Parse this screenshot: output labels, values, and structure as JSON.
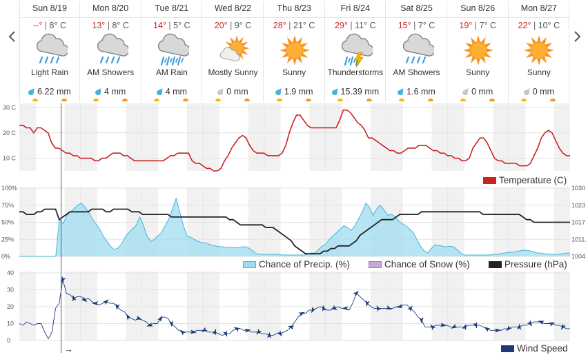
{
  "nav": {
    "prev_icon": "chevron-left-icon",
    "next_icon": "chevron-right-icon"
  },
  "days": [
    {
      "name": "Sun 8/19",
      "hi": "--°",
      "lo": "8° C",
      "icon": "rain-cloud-icon",
      "condition": "Light Rain",
      "precip": "6.22 mm",
      "drop": "blue"
    },
    {
      "name": "Mon 8/20",
      "hi": "13°",
      "lo": "8° C",
      "icon": "rain-cloud-icon",
      "condition": "AM Showers",
      "precip": "4 mm",
      "drop": "blue"
    },
    {
      "name": "Tue 8/21",
      "hi": "14°",
      "lo": "5° C",
      "icon": "heavy-rain-cloud-icon",
      "condition": "AM Rain",
      "precip": "4 mm",
      "drop": "blue"
    },
    {
      "name": "Wed 8/22",
      "hi": "20°",
      "lo": "9° C",
      "icon": "sun-cloud-icon",
      "condition": "Mostly Sunny",
      "precip": "0 mm",
      "drop": "gray"
    },
    {
      "name": "Thu 8/23",
      "hi": "28°",
      "lo": "21° C",
      "icon": "sun-icon",
      "condition": "Sunny",
      "precip": "1.9 mm",
      "drop": "blue"
    },
    {
      "name": "Fri 8/24",
      "hi": "29°",
      "lo": "11° C",
      "icon": "thunderstorm-icon",
      "condition": "Thunderstorms",
      "precip": "15.39 mm",
      "drop": "blue"
    },
    {
      "name": "Sat 8/25",
      "hi": "15°",
      "lo": "7° C",
      "icon": "rain-cloud-icon",
      "condition": "AM Showers",
      "precip": "1.6 mm",
      "drop": "blue"
    },
    {
      "name": "Sun 8/26",
      "hi": "19°",
      "lo": "7° C",
      "icon": "sun-icon",
      "condition": "Sunny",
      "precip": "0 mm",
      "drop": "gray"
    },
    {
      "name": "Mon 8/27",
      "hi": "22°",
      "lo": "10° C",
      "icon": "sun-icon",
      "condition": "Sunny",
      "precip": "0 mm",
      "drop": "gray"
    }
  ],
  "colors": {
    "temperature": "#cc2222",
    "precip_fill": "#9fdcf0",
    "precip_stroke": "#45b4dc",
    "snow": "#b39ddb",
    "pressure": "#222222",
    "wind": "#1a3a7a",
    "sun": "#f7931e",
    "drop_blue": "#45b4dc",
    "drop_gray": "#c8c8c8"
  },
  "legends": {
    "temperature": "Temperature (C)",
    "precip": "Chance of Precip. (%)",
    "snow": "Chance of Snow (%)",
    "pressure": "Pressure (hPa)",
    "wind": "Wind Speed"
  },
  "now_marker": "→",
  "chart_data": [
    {
      "type": "line",
      "title": "",
      "legend": [
        "Temperature (C)"
      ],
      "ylim": [
        5,
        30
      ],
      "y_ticks": [
        "30 C",
        "20 C",
        "10 C"
      ],
      "series": [
        {
          "name": "Temperature (C)",
          "values": [
            23,
            23,
            22,
            22,
            20,
            22,
            22,
            21,
            20,
            16,
            14,
            14,
            13,
            12,
            12,
            11,
            11,
            10,
            10,
            10,
            10,
            9,
            9,
            10,
            10,
            11,
            12,
            12,
            12,
            11,
            11,
            10,
            9,
            9,
            9,
            9,
            9,
            9,
            9,
            9,
            9,
            10,
            11,
            11,
            12,
            12,
            12,
            12,
            9,
            8,
            8,
            7,
            6,
            6,
            5,
            5,
            6,
            9,
            11,
            14,
            16,
            18,
            19,
            18,
            15,
            13,
            12,
            12,
            12,
            11,
            11,
            11,
            11,
            12,
            15,
            20,
            24,
            27,
            27,
            25,
            23,
            22,
            22,
            22,
            22,
            22,
            22,
            22,
            22,
            25,
            29,
            29,
            28,
            26,
            24,
            23,
            21,
            18,
            18,
            17,
            16,
            15,
            14,
            13,
            13,
            12,
            12,
            13,
            14,
            14,
            14,
            15,
            15,
            15,
            14,
            13,
            13,
            12,
            12,
            11,
            11,
            10,
            10,
            9,
            9,
            10,
            14,
            16,
            18,
            18,
            16,
            13,
            10,
            9,
            9,
            8,
            8,
            8,
            8,
            7,
            7,
            7,
            8,
            11,
            14,
            18,
            20,
            21,
            20,
            17,
            14,
            12,
            11,
            11
          ]
        }
      ]
    },
    {
      "type": "area",
      "title": "",
      "legend": [
        "Chance of Precip. (%)",
        "Chance of Snow (%)",
        "Pressure (hPa)"
      ],
      "ylim": [
        0,
        100
      ],
      "y_ticks_left": [
        "100%",
        "75%",
        "50%",
        "25%",
        "0%"
      ],
      "y_ticks_right": [
        "1030",
        "1023",
        "1017",
        "1011.",
        "1004"
      ],
      "y2lim": [
        1004,
        1030
      ],
      "series": [
        {
          "name": "Chance of Precip. (%)",
          "values": [
            0,
            0,
            0,
            0,
            0,
            0,
            0,
            0,
            0,
            0,
            0,
            55,
            48,
            60,
            65,
            70,
            75,
            78,
            72,
            65,
            55,
            48,
            40,
            30,
            22,
            15,
            10,
            12,
            18,
            28,
            35,
            40,
            45,
            58,
            46,
            30,
            22,
            25,
            30,
            35,
            45,
            55,
            70,
            85,
            65,
            45,
            30,
            28,
            25,
            22,
            20,
            20,
            18,
            16,
            15,
            14,
            14,
            13,
            13,
            13,
            13,
            14,
            14,
            12,
            8,
            4,
            3,
            3,
            3,
            3,
            3,
            3,
            2,
            2,
            2,
            2,
            2,
            2,
            2,
            3,
            5,
            5,
            10,
            15,
            18,
            25,
            30,
            35,
            40,
            45,
            42,
            38,
            45,
            55,
            65,
            78,
            72,
            60,
            70,
            75,
            68,
            60,
            62,
            58,
            52,
            48,
            45,
            40,
            35,
            25,
            15,
            8,
            5,
            12,
            17,
            16,
            15,
            14,
            15,
            14,
            10,
            5,
            2,
            2,
            2,
            2,
            2,
            2,
            2,
            2,
            3,
            3,
            4,
            5,
            6,
            6,
            7,
            8,
            9,
            9,
            8,
            7,
            5,
            5,
            4,
            3,
            3,
            3,
            3,
            4,
            5,
            5
          ]
        },
        {
          "name": "Pressure (hPa)",
          "values": [
            1021,
            1021,
            1020,
            1020,
            1020,
            1021,
            1021,
            1022,
            1022,
            1022,
            1022,
            1018,
            1019,
            1020,
            1021,
            1021,
            1021,
            1021,
            1021,
            1021,
            1022,
            1022,
            1022,
            1022,
            1021,
            1021,
            1022,
            1022,
            1022,
            1022,
            1022,
            1021,
            1021,
            1021,
            1020,
            1020,
            1020,
            1020,
            1020,
            1020,
            1020,
            1020,
            1019,
            1019,
            1019,
            1019,
            1019,
            1019,
            1019,
            1019,
            1019,
            1019,
            1019,
            1019,
            1019,
            1019,
            1019,
            1019,
            1018,
            1018,
            1017,
            1016,
            1016,
            1016,
            1016,
            1016,
            1016,
            1016,
            1015,
            1015,
            1015,
            1014,
            1013,
            1012,
            1011,
            1010,
            1008,
            1007,
            1006,
            1005,
            1005,
            1005,
            1005,
            1005,
            1006,
            1006,
            1007,
            1007,
            1008,
            1008,
            1008,
            1008,
            1009,
            1010,
            1012,
            1013,
            1014,
            1015,
            1016,
            1017,
            1018,
            1018,
            1018,
            1018,
            1019,
            1020,
            1020,
            1020,
            1020,
            1020,
            1020,
            1021,
            1021,
            1021,
            1021,
            1021,
            1021,
            1021,
            1021,
            1021,
            1021,
            1021,
            1021,
            1021,
            1021,
            1021,
            1021,
            1021,
            1020,
            1020,
            1020,
            1020,
            1020,
            1020,
            1020,
            1020,
            1020,
            1020,
            1020,
            1019,
            1018,
            1018,
            1017,
            1017,
            1017,
            1017,
            1017,
            1017,
            1017,
            1017,
            1017,
            1017,
            1017
          ]
        }
      ]
    },
    {
      "type": "line",
      "title": "",
      "legend": [
        "Wind Speed"
      ],
      "ylim": [
        0,
        40
      ],
      "y_ticks": [
        "40",
        "30",
        "20",
        "10",
        "0"
      ],
      "series": [
        {
          "name": "Wind Speed",
          "values": [
            10,
            9,
            11,
            10,
            9,
            10,
            10,
            5,
            1,
            5,
            19,
            22,
            36,
            28,
            27,
            25,
            26,
            26,
            24,
            25,
            23,
            22,
            21,
            22,
            23,
            22,
            22,
            20,
            18,
            17,
            14,
            13,
            12,
            13,
            12,
            11,
            9,
            10,
            10,
            13,
            14,
            13,
            10,
            8,
            6,
            5,
            5,
            5,
            5,
            6,
            6,
            6,
            5,
            5,
            5,
            4,
            3,
            4,
            4,
            6,
            7,
            7,
            6,
            6,
            5,
            5,
            5,
            4,
            4,
            3,
            3,
            4,
            4,
            5,
            6,
            8,
            11,
            14,
            16,
            16,
            18,
            18,
            19,
            20,
            19,
            18,
            18,
            19,
            20,
            19,
            19,
            18,
            22,
            28,
            26,
            24,
            22,
            20,
            19,
            19,
            19,
            19,
            19,
            19,
            20,
            20,
            21,
            21,
            19,
            17,
            14,
            12,
            8,
            8,
            8,
            9,
            9,
            9,
            9,
            8,
            8,
            8,
            8,
            8,
            9,
            9,
            9,
            9,
            8,
            7,
            6,
            6,
            6,
            6,
            7,
            7,
            8,
            8,
            8,
            9,
            9,
            10,
            11,
            11,
            11,
            10,
            10,
            10,
            9,
            9,
            8,
            7,
            7
          ]
        }
      ]
    }
  ]
}
